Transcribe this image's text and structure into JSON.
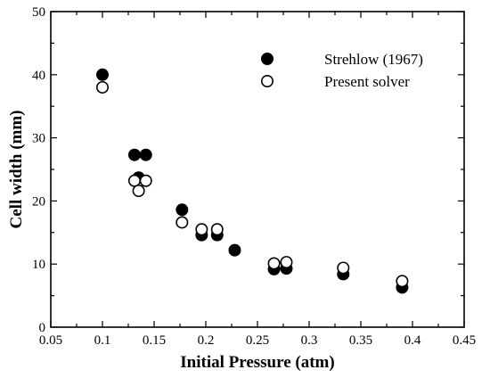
{
  "chart_data": {
    "type": "scatter",
    "xlabel": "Initial Pressure (atm)",
    "ylabel": "Cell width (mm)",
    "xlim": [
      0.05,
      0.45
    ],
    "ylim": [
      0,
      50
    ],
    "x_ticks": [
      "0.05",
      "0.1",
      "0.15",
      "0.2",
      "0.25",
      "0.3",
      "0.35",
      "0.4",
      "0.45"
    ],
    "y_ticks": [
      "0",
      "10",
      "20",
      "30",
      "40",
      "50"
    ],
    "grid": false,
    "legend_position": "top-right",
    "series": [
      {
        "name": "Strehlow (1967)",
        "marker": "filled-circle",
        "color": "#000000",
        "points": [
          [
            0.1,
            40.0
          ],
          [
            0.131,
            27.3
          ],
          [
            0.142,
            27.3
          ],
          [
            0.135,
            23.7
          ],
          [
            0.177,
            18.6
          ],
          [
            0.196,
            14.6
          ],
          [
            0.211,
            14.6
          ],
          [
            0.228,
            12.2
          ],
          [
            0.266,
            9.2
          ],
          [
            0.278,
            9.3
          ],
          [
            0.333,
            8.4
          ],
          [
            0.39,
            6.3
          ]
        ]
      },
      {
        "name": "Present solver",
        "marker": "open-circle",
        "color": "#000000",
        "points": [
          [
            0.1,
            38.0
          ],
          [
            0.131,
            23.2
          ],
          [
            0.142,
            23.2
          ],
          [
            0.135,
            21.6
          ],
          [
            0.177,
            16.6
          ],
          [
            0.196,
            15.5
          ],
          [
            0.211,
            15.5
          ],
          [
            0.266,
            10.1
          ],
          [
            0.278,
            10.3
          ],
          [
            0.333,
            9.4
          ],
          [
            0.39,
            7.3
          ]
        ]
      }
    ]
  }
}
